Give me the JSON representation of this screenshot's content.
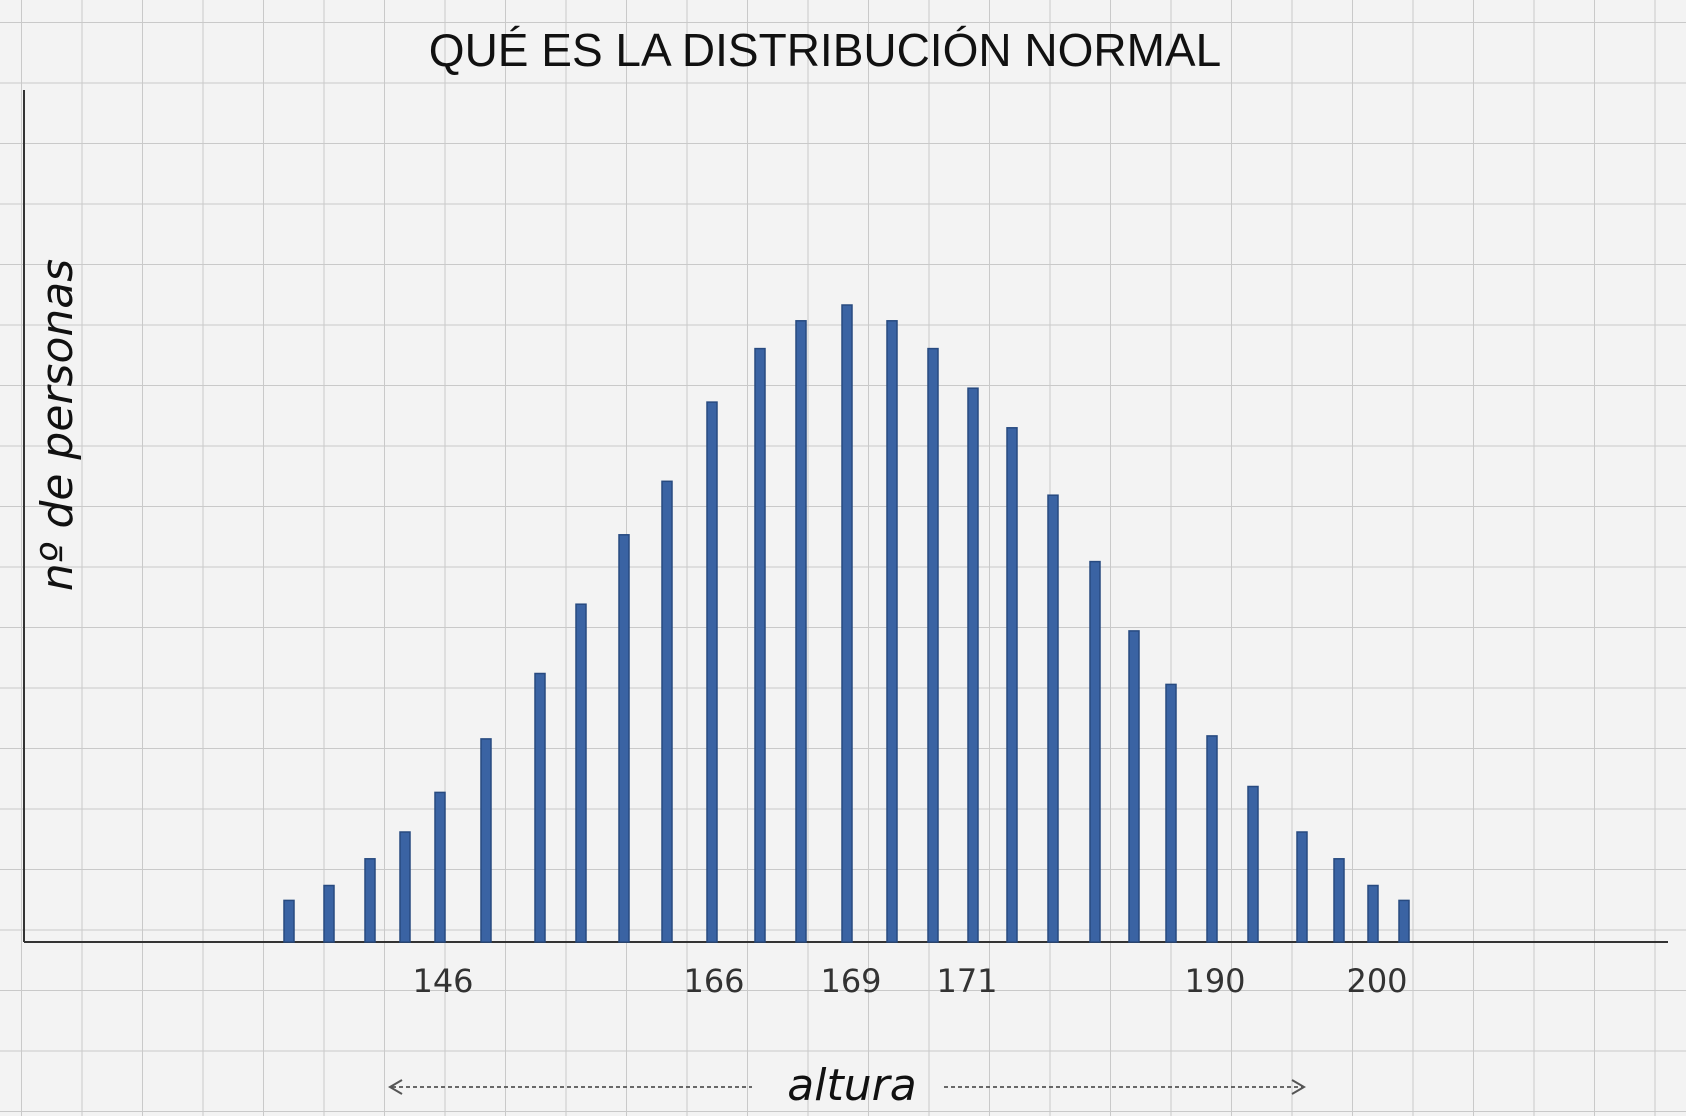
{
  "chart_data": {
    "type": "bar",
    "title": "QUÉ ES LA DISTRIBUCIÓN NORMAL",
    "xlabel": "altura",
    "ylabel": "nº de personas",
    "x_tick_labels": [
      "146",
      "166",
      "169",
      "171",
      "190",
      "200"
    ],
    "values": [
      4.2,
      5.7,
      8.4,
      11.1,
      15.1,
      20.5,
      27.1,
      34.1,
      41.1,
      46.5,
      54.5,
      59.9,
      62.7,
      64.3,
      62.7,
      59.9,
      55.9,
      51.9,
      45.1,
      38.4,
      31.4,
      26.0,
      20.8,
      15.7,
      11.1,
      8.4,
      5.7,
      4.2
    ],
    "ylim": [
      0,
      86
    ],
    "grid": true,
    "legend": "none",
    "colors": {
      "bar": "#3a63a3",
      "background": "#f3f3f3",
      "grid": "#c9c9c9"
    }
  }
}
